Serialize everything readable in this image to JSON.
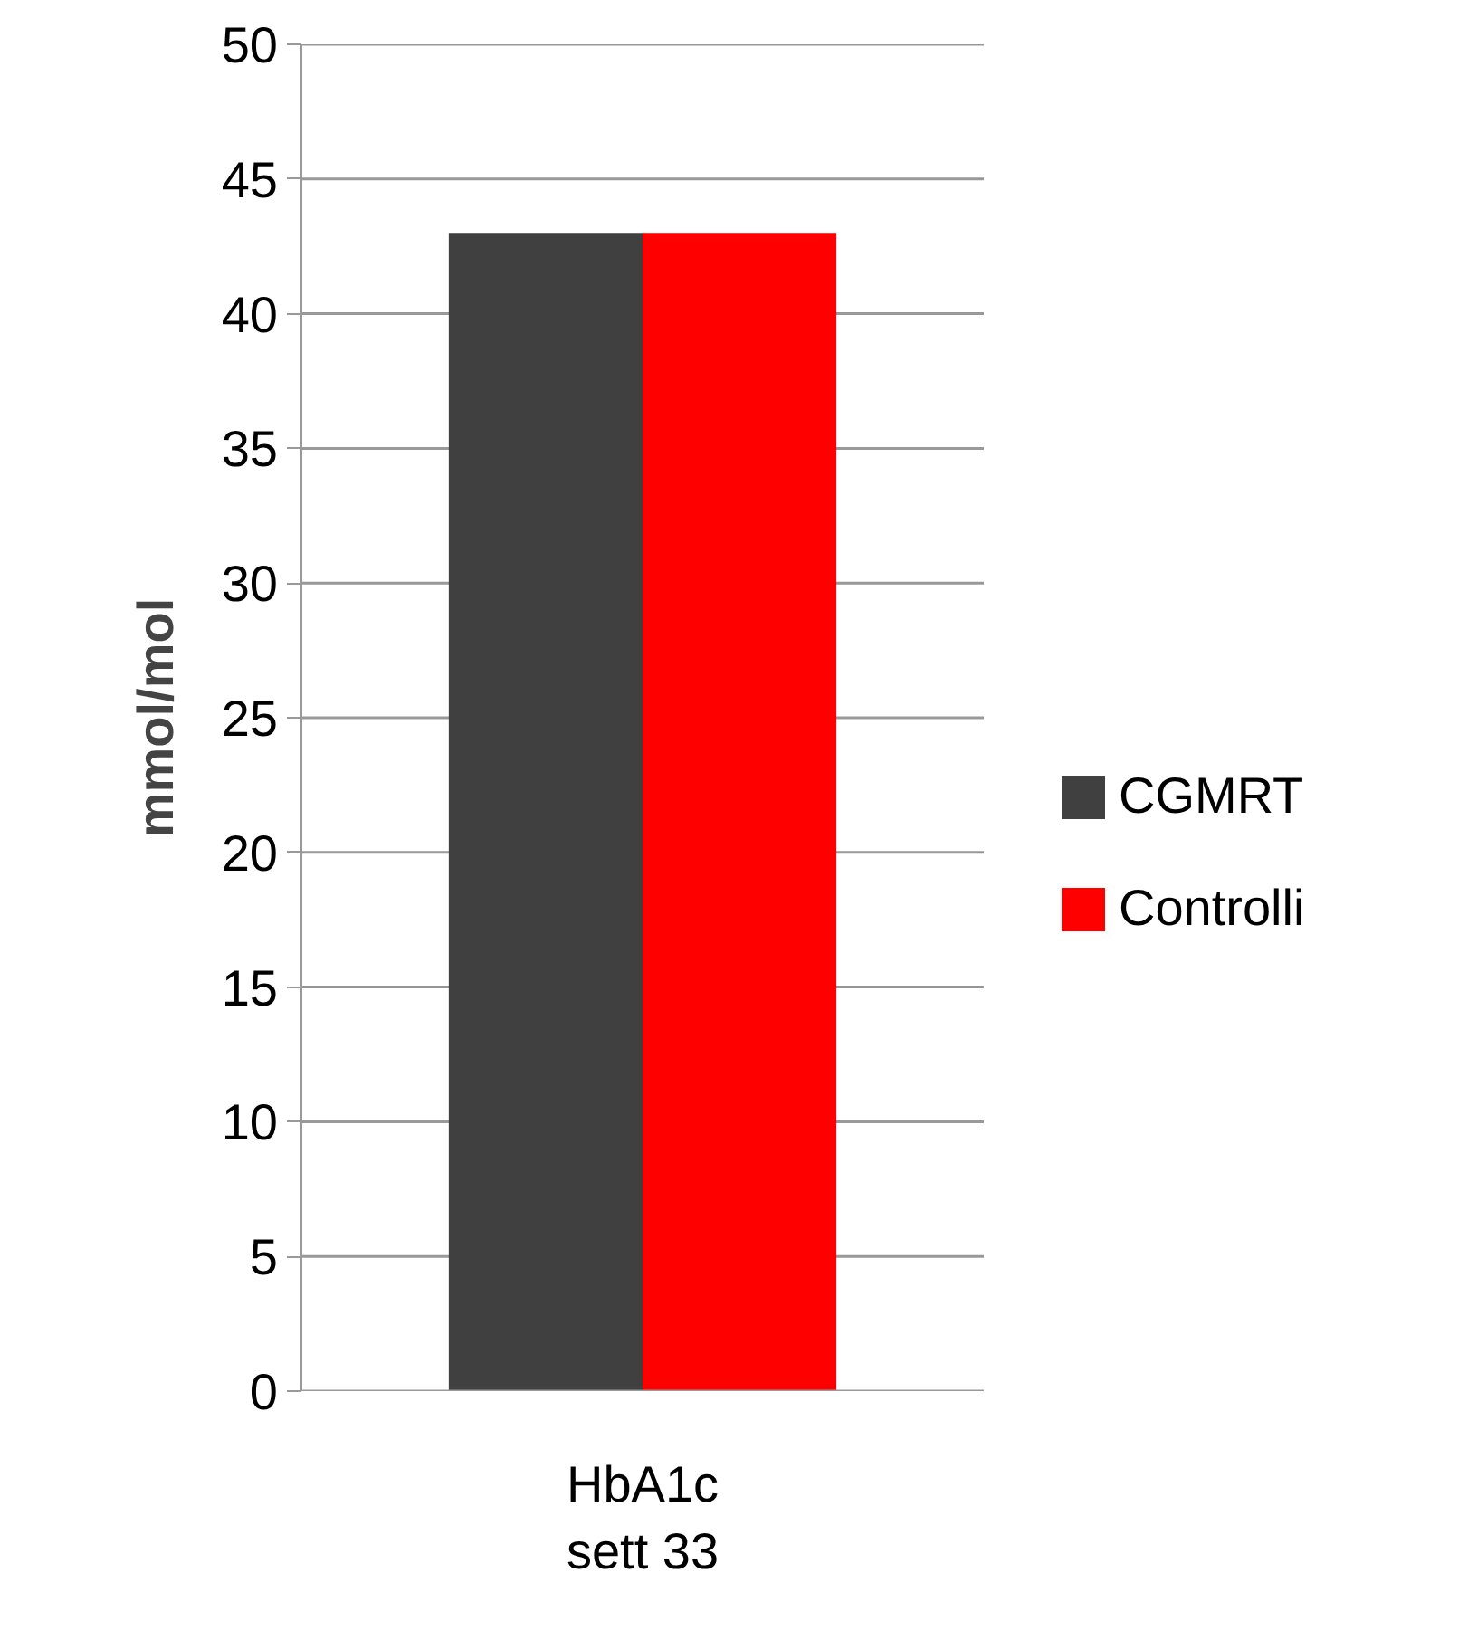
{
  "chart_data": {
    "type": "bar",
    "ylabel": "mmol/mol",
    "categories": [
      "HbA1c\nsett 33"
    ],
    "series": [
      {
        "name": "CGMRT",
        "color": "#404040",
        "values": [
          43
        ]
      },
      {
        "name": "Controlli",
        "color": "#ff0000",
        "values": [
          43
        ]
      }
    ],
    "ylim": [
      0,
      50
    ],
    "yticks": [
      0,
      5,
      10,
      15,
      20,
      25,
      30,
      35,
      40,
      45,
      50
    ],
    "grid": "y",
    "legend": "right"
  }
}
